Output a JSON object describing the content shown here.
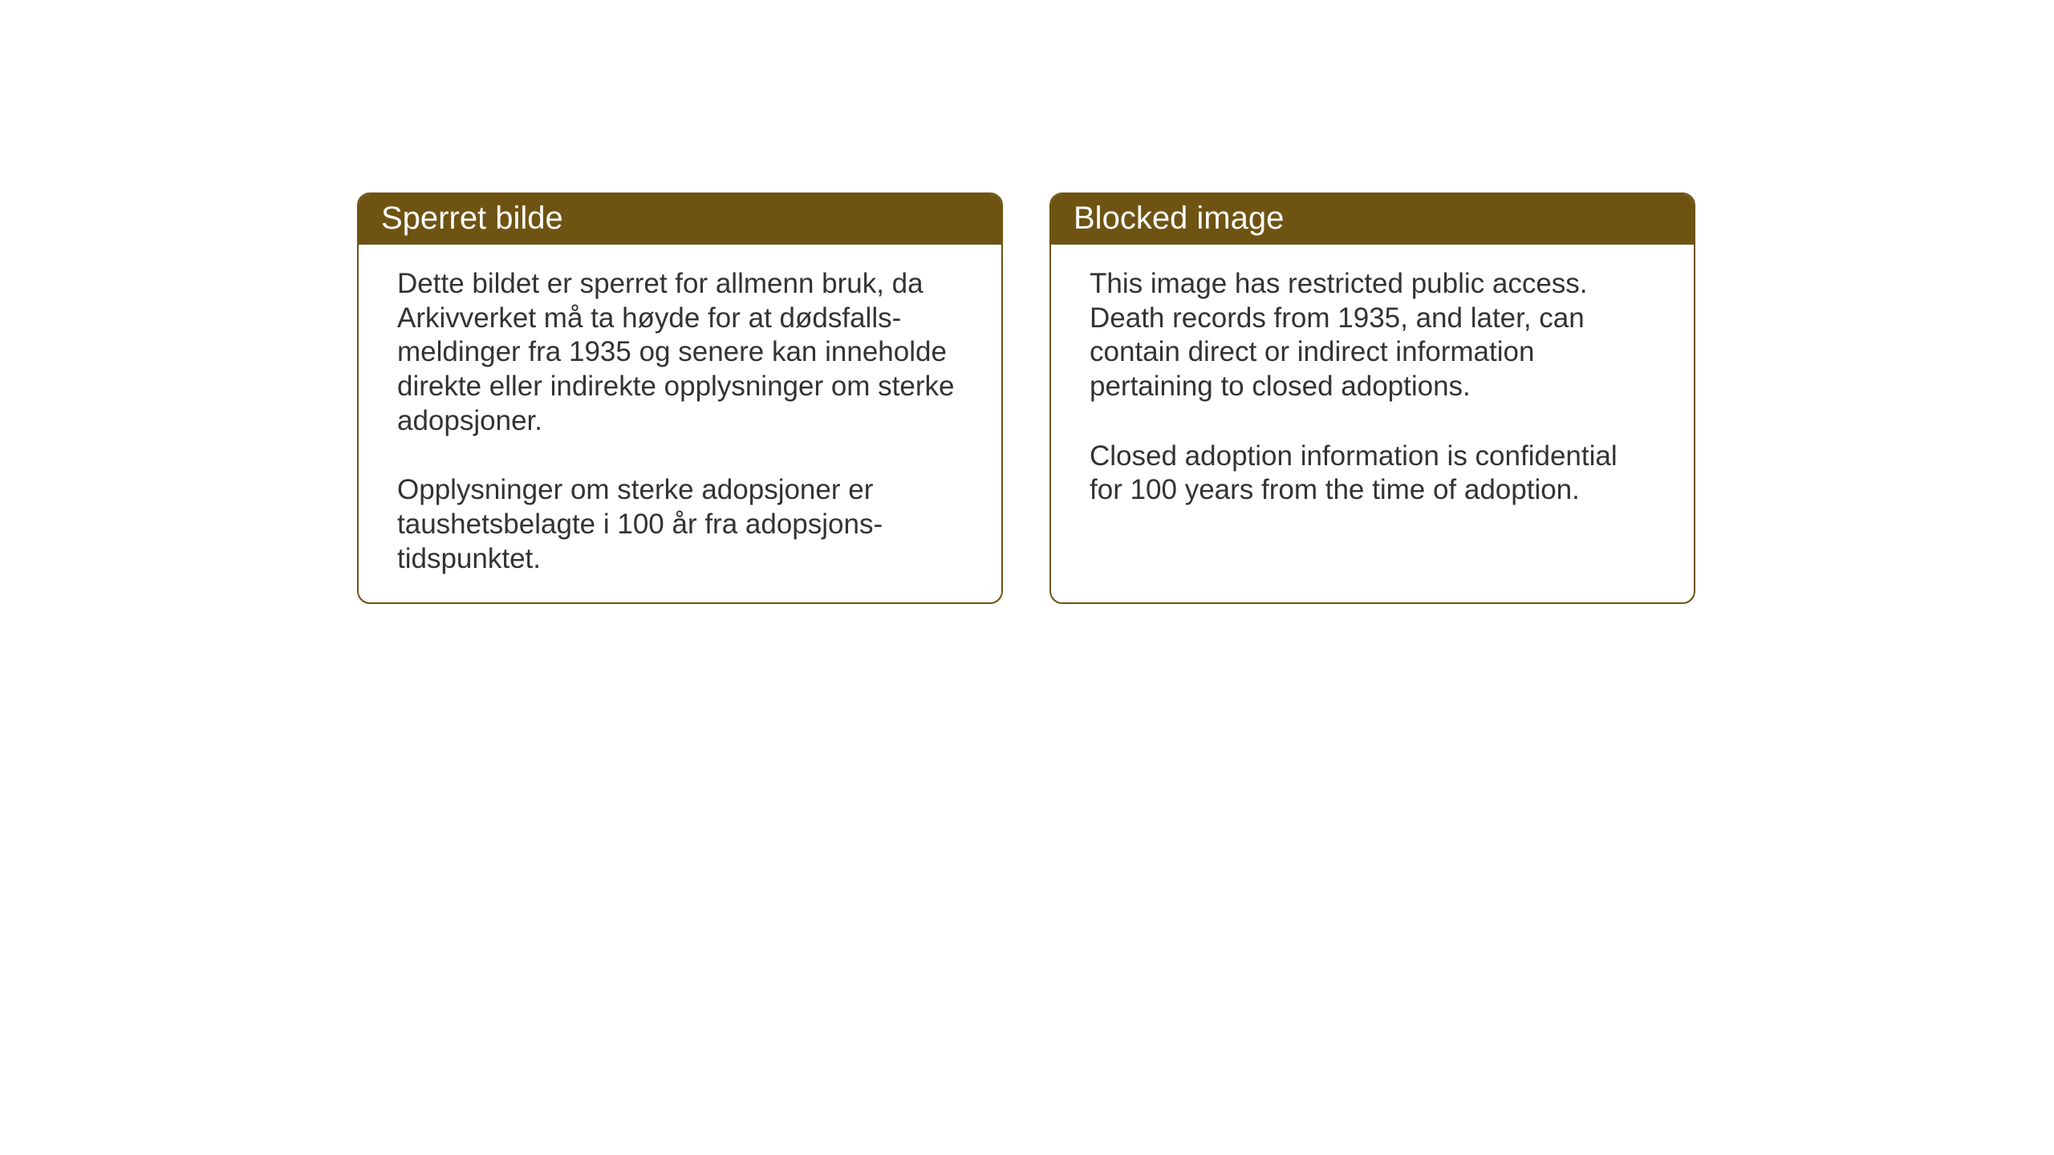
{
  "cards": {
    "norwegian": {
      "title": "Sperret bilde",
      "paragraph1": "Dette bildet er sperret for allmenn bruk, da Arkivverket må ta høyde for at dødsfalls-meldinger fra 1935 og senere kan inneholde direkte eller indirekte opplysninger om sterke adopsjoner.",
      "paragraph2": "Opplysninger om sterke adopsjoner er taushetsbelagte i 100 år fra adopsjons-tidspunktet."
    },
    "english": {
      "title": "Blocked image",
      "paragraph1": "This image has restricted public access. Death records from 1935, and later, can contain direct or indirect information pertaining to closed adoptions.",
      "paragraph2": "Closed adoption information is confidential for 100 years from the time of adoption."
    }
  },
  "styling": {
    "header_background": "#6e5312",
    "header_text_color": "#ffffff",
    "border_color": "#6e5312",
    "body_text_color": "#333333",
    "card_background": "#ffffff",
    "page_background": "#ffffff",
    "title_fontsize": 40,
    "body_fontsize": 35,
    "border_radius": 16,
    "border_width": 2
  }
}
